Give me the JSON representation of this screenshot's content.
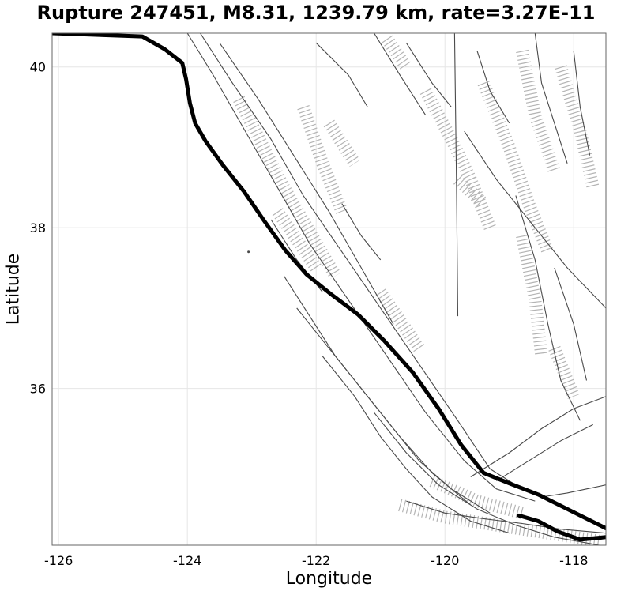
{
  "title": "Rupture 247451, M8.31, 1239.79 km, rate=3.27E-11",
  "xlabel": "Longitude",
  "ylabel": "Latitude",
  "xaxis": {
    "min": -126.1,
    "max": -117.5,
    "ticks": [
      -126,
      -124,
      -122,
      -120,
      -118
    ]
  },
  "yaxis": {
    "min": 34.05,
    "max": 40.42,
    "ticks": [
      36,
      38,
      40
    ]
  },
  "colors": {
    "rupture": "#000000",
    "fault": "#4a4a4a",
    "surface": "#b4b4b4",
    "grid": "#e6e6e6"
  },
  "rupture_trace": [
    [
      -126.1,
      40.42
    ],
    [
      -124.7,
      40.38
    ],
    [
      -124.35,
      40.22
    ],
    [
      -124.08,
      40.05
    ],
    [
      -124.02,
      39.85
    ],
    [
      -123.96,
      39.55
    ],
    [
      -123.88,
      39.3
    ],
    [
      -123.72,
      39.08
    ],
    [
      -123.45,
      38.78
    ],
    [
      -123.12,
      38.45
    ],
    [
      -122.82,
      38.1
    ],
    [
      -122.48,
      37.72
    ],
    [
      -122.15,
      37.42
    ],
    [
      -121.78,
      37.18
    ],
    [
      -121.35,
      36.92
    ],
    [
      -120.95,
      36.6
    ],
    [
      -120.5,
      36.2
    ],
    [
      -120.1,
      35.75
    ],
    [
      -119.75,
      35.3
    ],
    [
      -119.4,
      34.95
    ],
    [
      -119.0,
      34.82
    ],
    [
      -118.55,
      34.68
    ],
    [
      -118.1,
      34.5
    ],
    [
      -117.5,
      34.26
    ]
  ],
  "rupture_branch": [
    [
      -118.85,
      34.42
    ],
    [
      -118.55,
      34.35
    ],
    [
      -118.25,
      34.22
    ],
    [
      -117.9,
      34.12
    ],
    [
      -117.5,
      34.15
    ]
  ],
  "faults": [
    [
      [
        -124.0,
        40.42
      ],
      [
        -123.6,
        39.9
      ],
      [
        -123.1,
        39.2
      ],
      [
        -122.6,
        38.5
      ],
      [
        -122.1,
        37.8
      ],
      [
        -121.5,
        37.1
      ],
      [
        -120.9,
        36.4
      ],
      [
        -120.3,
        35.7
      ],
      [
        -119.7,
        35.1
      ],
      [
        -119.2,
        34.75
      ],
      [
        -118.6,
        34.6
      ]
    ],
    [
      [
        -123.8,
        40.42
      ],
      [
        -123.3,
        39.8
      ],
      [
        -122.7,
        39.1
      ],
      [
        -122.2,
        38.4
      ],
      [
        -121.6,
        37.7
      ],
      [
        -121.0,
        37.0
      ],
      [
        -120.4,
        36.3
      ],
      [
        -119.8,
        35.6
      ],
      [
        -119.3,
        35.0
      ],
      [
        -118.8,
        34.75
      ]
    ],
    [
      [
        -123.5,
        40.3
      ],
      [
        -122.9,
        39.6
      ],
      [
        -122.35,
        38.9
      ],
      [
        -121.8,
        38.2
      ],
      [
        -121.3,
        37.5
      ],
      [
        -120.8,
        36.8
      ]
    ],
    [
      [
        -122.5,
        37.4
      ],
      [
        -122.1,
        36.9
      ],
      [
        -121.7,
        36.4
      ],
      [
        -121.2,
        35.9
      ],
      [
        -120.7,
        35.4
      ],
      [
        -120.2,
        34.95
      ],
      [
        -119.6,
        34.55
      ]
    ],
    [
      [
        -122.3,
        37.0
      ],
      [
        -121.8,
        36.5
      ],
      [
        -121.3,
        36.0
      ],
      [
        -120.8,
        35.5
      ],
      [
        -120.4,
        35.1
      ],
      [
        -119.9,
        34.75
      ],
      [
        -119.3,
        34.45
      ]
    ],
    [
      [
        -121.9,
        36.4
      ],
      [
        -121.4,
        35.9
      ],
      [
        -121.0,
        35.4
      ],
      [
        -120.6,
        35.0
      ],
      [
        -120.2,
        34.65
      ],
      [
        -119.6,
        34.35
      ],
      [
        -119.0,
        34.2
      ]
    ],
    [
      [
        -121.1,
        35.7
      ],
      [
        -120.6,
        35.2
      ],
      [
        -120.1,
        34.8
      ],
      [
        -119.5,
        34.5
      ],
      [
        -118.9,
        34.3
      ],
      [
        -118.3,
        34.15
      ],
      [
        -117.6,
        34.05
      ]
    ],
    [
      [
        -120.6,
        34.6
      ],
      [
        -120.0,
        34.45
      ],
      [
        -119.4,
        34.38
      ],
      [
        -118.8,
        34.32
      ],
      [
        -118.2,
        34.25
      ],
      [
        -117.5,
        34.2
      ]
    ],
    [
      [
        -119.6,
        34.9
      ],
      [
        -119.0,
        35.2
      ],
      [
        -118.5,
        35.5
      ],
      [
        -118.0,
        35.75
      ],
      [
        -117.5,
        35.9
      ]
    ],
    [
      [
        -119.2,
        34.85
      ],
      [
        -118.7,
        35.1
      ],
      [
        -118.2,
        35.35
      ],
      [
        -117.7,
        35.55
      ]
    ],
    [
      [
        -118.5,
        34.65
      ],
      [
        -118.1,
        34.7
      ],
      [
        -117.8,
        34.75
      ],
      [
        -117.5,
        34.8
      ]
    ],
    [
      [
        -119.85,
        40.42
      ],
      [
        -119.82,
        38.5
      ],
      [
        -119.8,
        36.9
      ]
    ],
    [
      [
        -119.7,
        39.2
      ],
      [
        -119.2,
        38.6
      ],
      [
        -118.6,
        38.0
      ],
      [
        -118.1,
        37.5
      ],
      [
        -117.5,
        37.0
      ]
    ],
    [
      [
        -118.9,
        38.4
      ],
      [
        -118.6,
        37.6
      ],
      [
        -118.4,
        36.8
      ],
      [
        -118.2,
        36.1
      ],
      [
        -117.9,
        35.6
      ]
    ],
    [
      [
        -118.3,
        37.5
      ],
      [
        -118.0,
        36.8
      ],
      [
        -117.8,
        36.1
      ]
    ],
    [
      [
        -121.1,
        40.42
      ],
      [
        -120.7,
        39.9
      ],
      [
        -120.3,
        39.4
      ]
    ],
    [
      [
        -120.6,
        40.3
      ],
      [
        -120.2,
        39.8
      ],
      [
        -119.9,
        39.5
      ]
    ],
    [
      [
        -119.5,
        40.2
      ],
      [
        -119.3,
        39.7
      ],
      [
        -119.0,
        39.3
      ]
    ],
    [
      [
        -118.6,
        40.42
      ],
      [
        -118.5,
        39.8
      ],
      [
        -118.3,
        39.3
      ],
      [
        -118.1,
        38.8
      ]
    ],
    [
      [
        -118.0,
        40.2
      ],
      [
        -117.9,
        39.5
      ],
      [
        -117.75,
        38.9
      ]
    ],
    [
      [
        -122.0,
        40.3
      ],
      [
        -121.5,
        39.9
      ],
      [
        -121.2,
        39.5
      ]
    ],
    [
      [
        -121.6,
        38.3
      ],
      [
        -121.3,
        37.9
      ],
      [
        -121.0,
        37.6
      ]
    ],
    [
      [
        -122.7,
        38.1
      ],
      [
        -122.3,
        37.6
      ],
      [
        -121.9,
        37.2
      ]
    ]
  ],
  "surfaces": [
    [
      [
        -123.2,
        39.6
      ],
      [
        -122.5,
        38.5
      ],
      [
        -121.7,
        37.4
      ]
    ],
    [
      [
        -122.2,
        39.5
      ],
      [
        -121.9,
        38.8
      ],
      [
        -121.6,
        38.2
      ]
    ],
    [
      [
        -121.8,
        39.3
      ],
      [
        -121.4,
        38.8
      ]
    ],
    [
      [
        -121.0,
        37.2
      ],
      [
        -120.4,
        36.5
      ]
    ],
    [
      [
        -120.3,
        39.7
      ],
      [
        -119.9,
        39.1
      ],
      [
        -119.6,
        38.6
      ],
      [
        -119.3,
        38.0
      ]
    ],
    [
      [
        -119.4,
        39.8
      ],
      [
        -119.0,
        39.0
      ],
      [
        -118.7,
        38.3
      ],
      [
        -118.4,
        37.7
      ]
    ],
    [
      [
        -118.8,
        40.2
      ],
      [
        -118.6,
        39.4
      ],
      [
        -118.3,
        38.7
      ]
    ],
    [
      [
        -118.2,
        40.0
      ],
      [
        -117.9,
        39.2
      ],
      [
        -117.7,
        38.5
      ]
    ],
    [
      [
        -118.8,
        37.9
      ],
      [
        -118.6,
        37.1
      ],
      [
        -118.5,
        36.4
      ]
    ],
    [
      [
        -118.3,
        36.5
      ],
      [
        -118.0,
        35.9
      ]
    ],
    [
      [
        -120.7,
        34.55
      ],
      [
        -120.0,
        34.4
      ],
      [
        -119.2,
        34.3
      ],
      [
        -118.4,
        34.2
      ],
      [
        -117.6,
        34.1
      ]
    ],
    [
      [
        -120.2,
        34.85
      ],
      [
        -119.5,
        34.6
      ],
      [
        -118.8,
        34.45
      ]
    ],
    [
      [
        -122.6,
        38.2
      ],
      [
        -122.0,
        37.5
      ]
    ],
    [
      [
        -120.9,
        40.35
      ],
      [
        -120.6,
        40.0
      ]
    ],
    [
      [
        -119.8,
        38.6
      ],
      [
        -119.4,
        38.3
      ]
    ]
  ],
  "annotation_dot": [
    -123.05,
    37.7
  ]
}
